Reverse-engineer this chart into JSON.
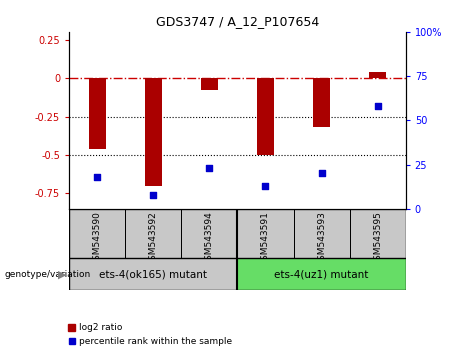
{
  "title": "GDS3747 / A_12_P107654",
  "samples": [
    "GSM543590",
    "GSM543592",
    "GSM543594",
    "GSM543591",
    "GSM543593",
    "GSM543595"
  ],
  "log2_ratio": [
    -0.46,
    -0.7,
    -0.08,
    -0.5,
    -0.32,
    0.04
  ],
  "percentile_rank": [
    18,
    8,
    23,
    13,
    20,
    58
  ],
  "group1_label": "ets-4(ok165) mutant",
  "group2_label": "ets-4(uz1) mutant",
  "group1_indices": [
    0,
    1,
    2
  ],
  "group2_indices": [
    3,
    4,
    5
  ],
  "genotype_label": "genotype/variation",
  "legend1_label": "log2 ratio",
  "legend2_label": "percentile rank within the sample",
  "ylim_left": [
    -0.85,
    0.3
  ],
  "ylim_right": [
    0,
    100
  ],
  "bar_color": "#AA0000",
  "dot_color": "#0000CC",
  "hline_color": "#CC0000",
  "dotted_line_color": "#000000",
  "label_bg": "#C8C8C8",
  "group1_bg": "#C8C8C8",
  "group2_bg": "#66DD66",
  "plot_bg": "#FFFFFF"
}
